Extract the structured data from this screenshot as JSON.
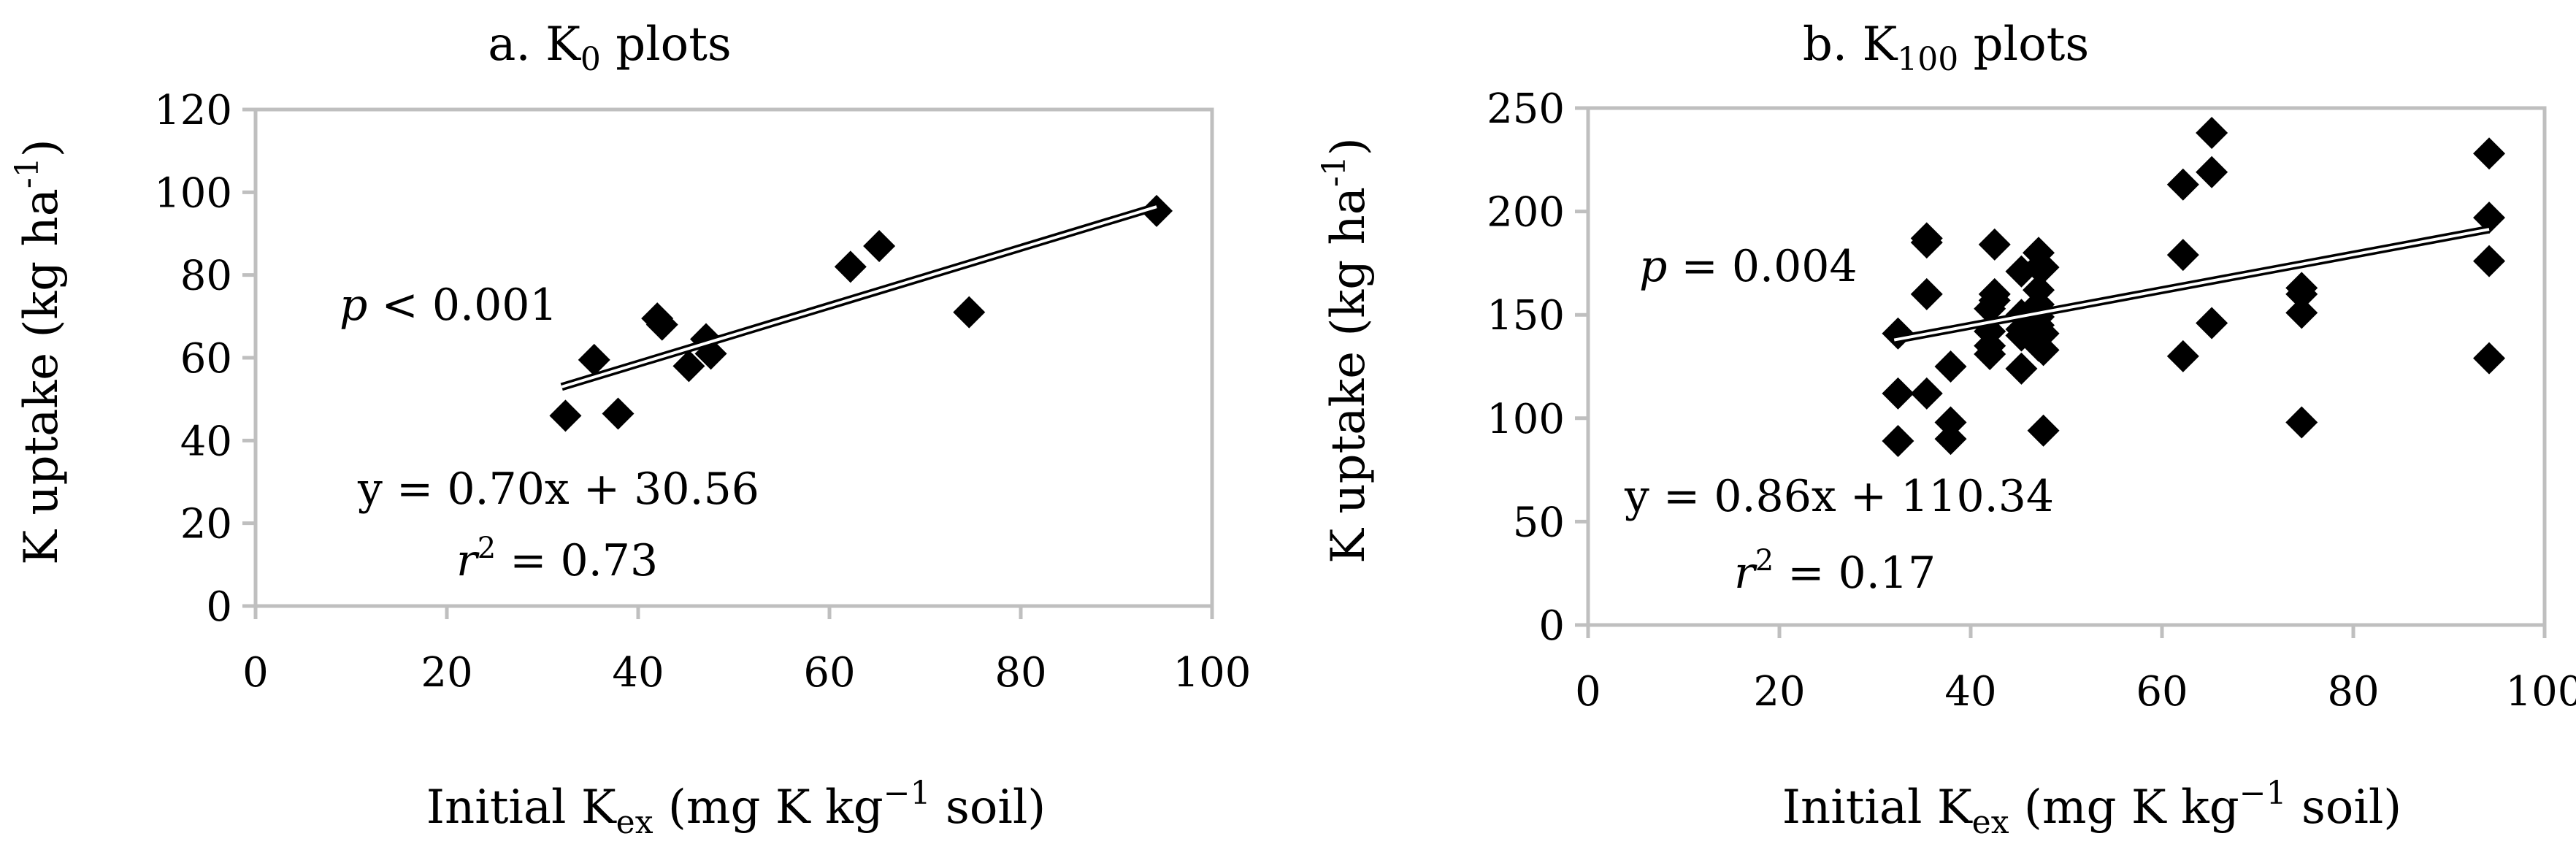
{
  "chart_data": [
    {
      "type": "scatter",
      "title": {
        "pre": "a. K",
        "sub": "0",
        "post": " plots"
      },
      "xlabel": {
        "pre": "Initial K",
        "sub": "ex",
        "post": " (mg K kg",
        "sup": "−1",
        "post2": " soil)"
      },
      "ylabel": {
        "pre": "K uptake (kg ha",
        "sup": "-1",
        "post": ")"
      },
      "xlim": [
        0,
        100
      ],
      "ylim": [
        0,
        120
      ],
      "xticks": [
        "0",
        "20",
        "40",
        "60",
        "80",
        "100"
      ],
      "yticks": [
        "0",
        "20",
        "40",
        "60",
        "80",
        "100",
        "120"
      ],
      "points": [
        [
          32.4,
          46
        ],
        [
          35.4,
          59.5
        ],
        [
          37.9,
          46.5
        ],
        [
          42,
          69.5
        ],
        [
          42.5,
          68
        ],
        [
          45.3,
          58
        ],
        [
          47.1,
          64.5
        ],
        [
          47.6,
          61
        ],
        [
          62.2,
          82
        ],
        [
          65.2,
          87
        ],
        [
          74.6,
          71
        ],
        [
          94.2,
          95.5
        ]
      ],
      "trendline": {
        "slope": 0.7,
        "intercept": 30.56,
        "x_from": 32,
        "x_to": 94.2
      },
      "annotations": {
        "p_var": "p",
        "p_rest": " < 0.001",
        "equation": "y = 0.70x + 30.56",
        "r2_var": "r",
        "r2_exp": "2",
        "r2_rest": " = 0.73"
      }
    },
    {
      "type": "scatter",
      "title": {
        "pre": "b. K",
        "sub": "100",
        "post": "  plots"
      },
      "xlabel": {
        "pre": "Initial K",
        "sub": "ex",
        "post": " (mg K kg",
        "sup": "−1",
        "post2": " soil)"
      },
      "ylabel": {
        "pre": "K uptake (kg ha",
        "sup": "-1",
        "post": ")"
      },
      "xlim": [
        0,
        100
      ],
      "ylim": [
        0,
        250
      ],
      "xticks": [
        "0",
        "20",
        "40",
        "60",
        "80",
        "100"
      ],
      "yticks": [
        "0",
        "50",
        "100",
        "150",
        "200",
        "250"
      ],
      "points": [
        [
          32.4,
          141
        ],
        [
          32.4,
          112
        ],
        [
          32.4,
          89
        ],
        [
          35.4,
          187
        ],
        [
          35.4,
          185
        ],
        [
          35.4,
          160
        ],
        [
          35.4,
          112
        ],
        [
          37.9,
          125
        ],
        [
          37.9,
          98
        ],
        [
          37.9,
          90
        ],
        [
          42,
          153
        ],
        [
          42,
          142
        ],
        [
          42,
          135
        ],
        [
          42,
          131
        ],
        [
          42.5,
          184
        ],
        [
          42.5,
          160
        ],
        [
          42.5,
          157
        ],
        [
          45.3,
          171
        ],
        [
          45.3,
          150
        ],
        [
          45.3,
          143
        ],
        [
          45.3,
          140
        ],
        [
          45.3,
          124
        ],
        [
          47.1,
          180
        ],
        [
          47.1,
          173
        ],
        [
          47.1,
          162
        ],
        [
          47.1,
          155
        ],
        [
          47.1,
          149
        ],
        [
          47.1,
          145
        ],
        [
          47.1,
          135
        ],
        [
          47.6,
          173
        ],
        [
          47.6,
          141
        ],
        [
          47.6,
          133
        ],
        [
          47.6,
          94
        ],
        [
          62.2,
          213
        ],
        [
          62.2,
          179
        ],
        [
          62.2,
          130
        ],
        [
          65.2,
          238
        ],
        [
          65.2,
          219
        ],
        [
          65.2,
          146
        ],
        [
          74.6,
          163
        ],
        [
          74.6,
          160
        ],
        [
          74.6,
          151
        ],
        [
          74.6,
          98
        ],
        [
          94.2,
          228
        ],
        [
          94.2,
          197
        ],
        [
          94.2,
          176
        ],
        [
          94.2,
          129
        ]
      ],
      "trendline": {
        "slope": 0.86,
        "intercept": 110.34,
        "x_from": 32,
        "x_to": 94.2
      },
      "annotations": {
        "p_var": "p",
        "p_rest": " = 0.004",
        "equation": "y = 0.86x + 110.34",
        "r2_var": "r",
        "r2_exp": "2",
        "r2_rest": " = 0.17"
      }
    }
  ],
  "colors": {
    "marker": "#000000",
    "axis": "#bfbfbf",
    "text": "#000000",
    "background": "#ffffff"
  }
}
